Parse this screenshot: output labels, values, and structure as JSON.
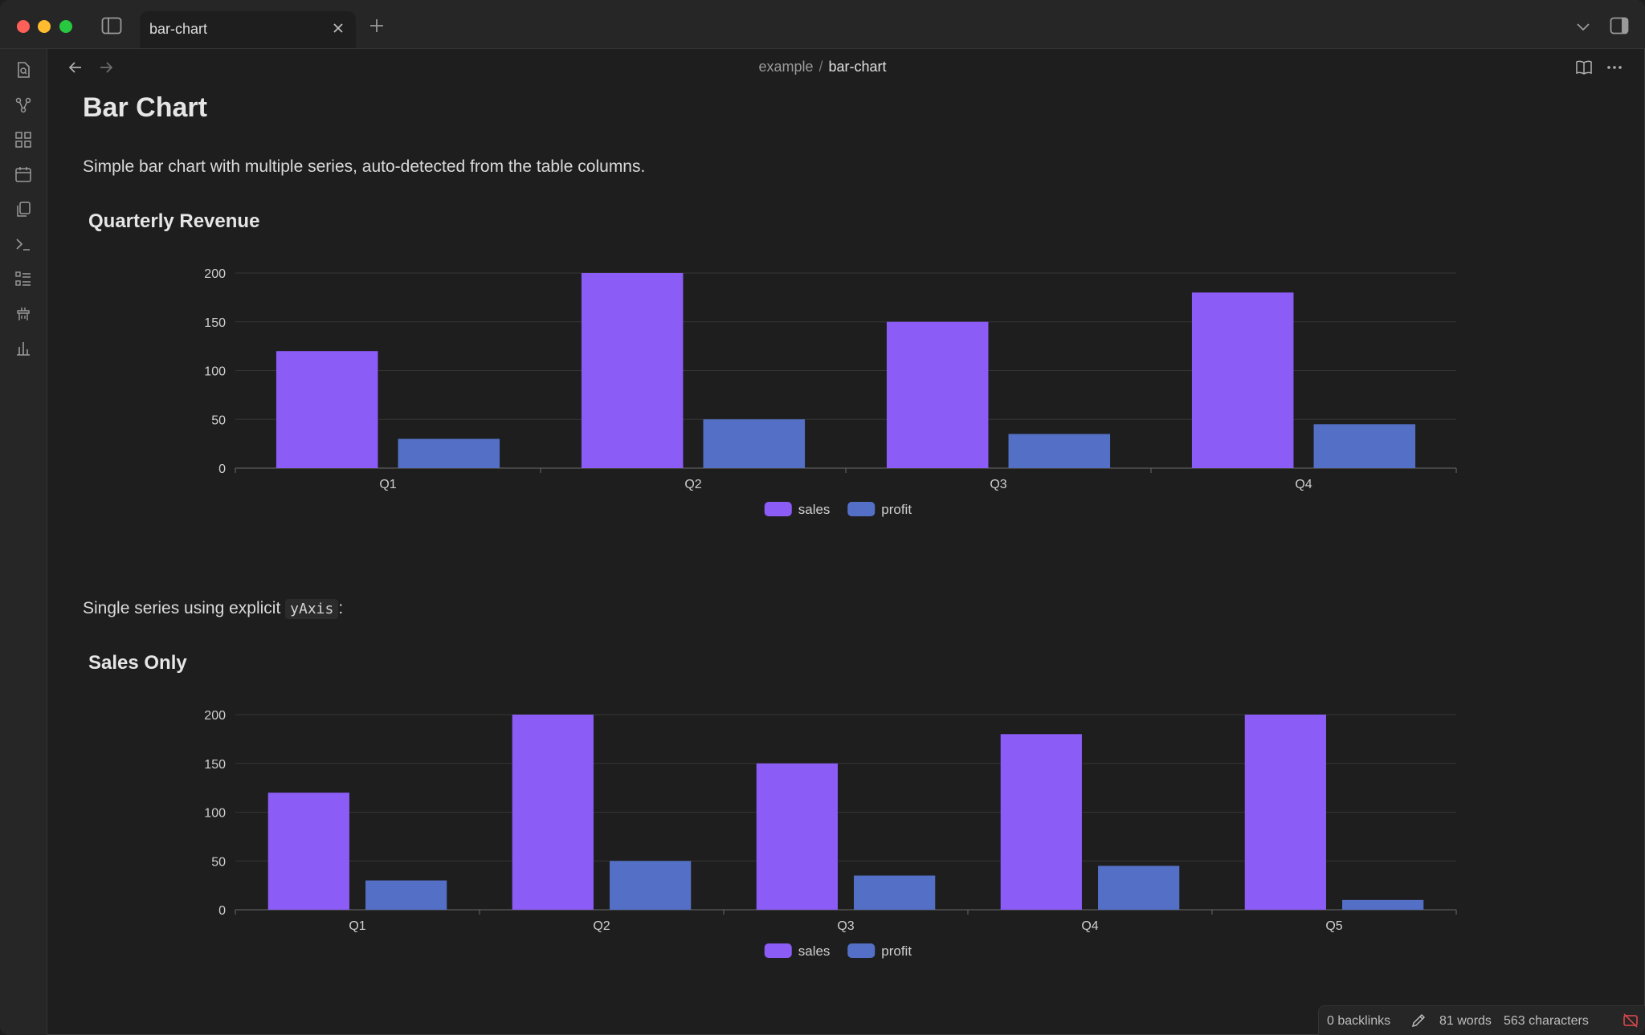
{
  "tab": {
    "label": "bar-chart"
  },
  "breadcrumb": {
    "parent": "example",
    "separator": "/",
    "current": "bar-chart"
  },
  "page": {
    "title": "Bar Chart",
    "intro": "Simple bar chart with multiple series, auto-detected from the table columns.",
    "single_prefix": "Single series using explicit",
    "single_code": "yAxis",
    "single_suffix": ":"
  },
  "charts": {
    "first_title": "Quarterly Revenue",
    "second_title": "Sales Only"
  },
  "chart_data": [
    {
      "type": "bar",
      "title": "Quarterly Revenue",
      "categories": [
        "Q1",
        "Q2",
        "Q3",
        "Q4"
      ],
      "series": [
        {
          "name": "sales",
          "values": [
            120,
            200,
            150,
            180
          ],
          "color": "#8b5cf6"
        },
        {
          "name": "profit",
          "values": [
            30,
            50,
            35,
            45
          ],
          "color": "#5470c6"
        }
      ],
      "ylim": [
        0,
        200
      ],
      "yticks": [
        0,
        50,
        100,
        150,
        200
      ],
      "grid": true,
      "legend": "bottom-center"
    },
    {
      "type": "bar",
      "title": "Sales Only",
      "categories": [
        "Q1",
        "Q2",
        "Q3",
        "Q4",
        "Q5"
      ],
      "series": [
        {
          "name": "sales",
          "values": [
            120,
            200,
            150,
            180,
            200
          ],
          "color": "#8b5cf6"
        },
        {
          "name": "profit",
          "values": [
            30,
            50,
            35,
            45,
            10
          ],
          "color": "#5470c6"
        }
      ],
      "ylim": [
        0,
        200
      ],
      "yticks": [
        0,
        50,
        100,
        150,
        200
      ],
      "grid": true,
      "legend": "bottom-center"
    }
  ],
  "status": {
    "backlinks": "0 backlinks",
    "words": "81 words",
    "characters": "563 characters"
  },
  "icons": {
    "ribbon": [
      "search-file-icon",
      "graph-view-icon",
      "canvas-icon",
      "calendar-icon",
      "copy-icon",
      "terminal-icon",
      "list-icon",
      "plugin-icon",
      "bar-chart-icon"
    ]
  }
}
